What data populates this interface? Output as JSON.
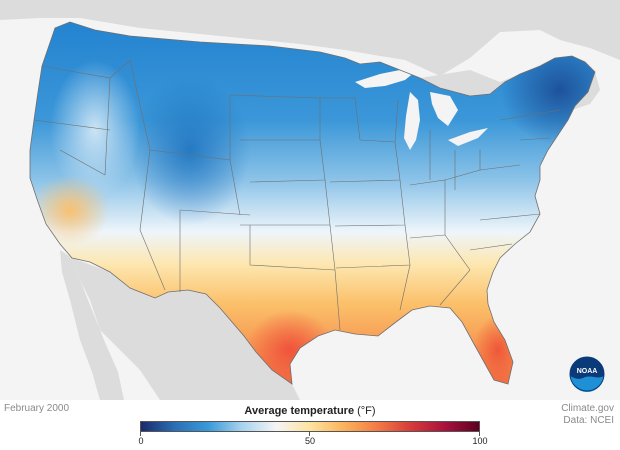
{
  "map": {
    "date_label": "February 2000",
    "credit_line1": "Climate.gov",
    "credit_line2": "Data: NCEI",
    "logo_text": "NOAA"
  },
  "legend": {
    "title": "Average temperature",
    "unit": "(°F)",
    "min": 0,
    "mid": 50,
    "max": 100,
    "tick_labels": [
      "0",
      "50",
      "100"
    ],
    "colors": [
      "#1a2a6c",
      "#2a6fb5",
      "#3a9ad9",
      "#a9d3ee",
      "#f5f5f5",
      "#fde3a0",
      "#fbb35a",
      "#f37a45",
      "#d63a3a",
      "#a8123d",
      "#5c0020"
    ]
  },
  "colors": {
    "land_background": "#dcdcdc",
    "water": "#f4f4f4",
    "state_lines": "#707070",
    "noaa_blue": "#1f6fb5"
  }
}
